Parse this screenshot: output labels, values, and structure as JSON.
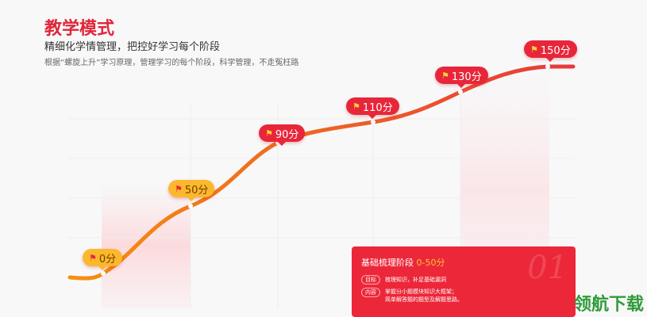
{
  "header": {
    "title": "教学模式",
    "subtitle": "精细化学情管理，把控好学习每个阶段",
    "description": "根据“螺旋上升”学习原理，管理学习的每个阶段，科学管理，不走冤枉路"
  },
  "milestones": [
    {
      "label": "0分",
      "style": "yellow"
    },
    {
      "label": "50分",
      "style": "yellow"
    },
    {
      "label": "90分",
      "style": "red"
    },
    {
      "label": "110分",
      "style": "red"
    },
    {
      "label": "130分",
      "style": "red"
    },
    {
      "label": "150分",
      "style": "red"
    }
  ],
  "card": {
    "stage": "基础梳理阶段",
    "range": "0-50分",
    "number": "01",
    "rows": [
      {
        "tag": "目标",
        "text": "梳理知识，补足基础漏洞"
      },
      {
        "tag": "内容",
        "text": "掌握分小题模块知识大框架；",
        "text2": "简单解答题的题型及解题思路。"
      }
    ]
  },
  "watermark": "领航下载",
  "colors": {
    "accent": "#e0263a",
    "curve_start": "#f5900f",
    "curve_end": "#e8393a",
    "flag_yellow": "#fbb82d"
  }
}
